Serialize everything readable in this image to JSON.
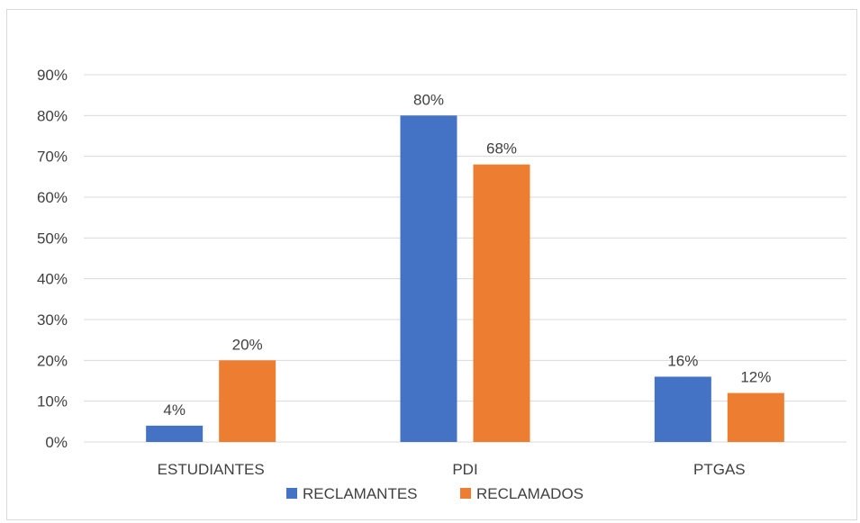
{
  "chart_data": {
    "type": "bar",
    "title": "",
    "xlabel": "",
    "ylabel": "",
    "categories": [
      "ESTUDIANTES",
      "PDI",
      "PTGAS"
    ],
    "series": [
      {
        "name": "RECLAMANTES",
        "values": [
          4,
          80,
          16
        ],
        "labels": [
          "4%",
          "80%",
          "16%"
        ],
        "color": "#4472c4"
      },
      {
        "name": "RECLAMADOS",
        "values": [
          20,
          68,
          12
        ],
        "labels": [
          "20%",
          "68%",
          "12%"
        ],
        "color": "#ed7d31"
      }
    ],
    "ylim": [
      0,
      90
    ],
    "yticks": [
      0,
      10,
      20,
      30,
      40,
      50,
      60,
      70,
      80,
      90
    ],
    "ytick_labels": [
      "0%",
      "10%",
      "20%",
      "30%",
      "40%",
      "50%",
      "60%",
      "70%",
      "80%",
      "90%"
    ],
    "grid": true,
    "gridline_color": "#d9d9d9",
    "legend_position": "bottom"
  }
}
